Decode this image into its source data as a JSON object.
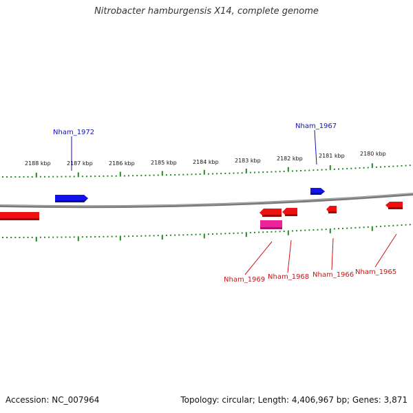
{
  "title": "Nitrobacter hamburgensis X14, complete genome",
  "footer": {
    "accession": "Accession: NC_007964",
    "summary": "Topology: circular; Length: 4,406,967 bp; Genes: 3,871"
  },
  "colors": {
    "forward_gene": "#1010ee",
    "reverse_gene": "#ee1111",
    "rna_gene": "#ee2299",
    "tick": "#1e8c1e",
    "backbone": "#808080",
    "forward_label": "#1010c0",
    "reverse_label": "#cc1111"
  },
  "ruler": {
    "labels": [
      "2188 kbp",
      "2187 kbp",
      "2186 kbp",
      "2185 kbp",
      "2184 kbp",
      "2183 kbp",
      "2182 kbp",
      "2181 kbp",
      "2180 kbp"
    ]
  },
  "gene_labels": {
    "forward": [
      "Nham_1972",
      "Nham_1967"
    ],
    "reverse": [
      "Nham_1969",
      "Nham_1968",
      "Nham_1966",
      "Nham_1965"
    ]
  }
}
